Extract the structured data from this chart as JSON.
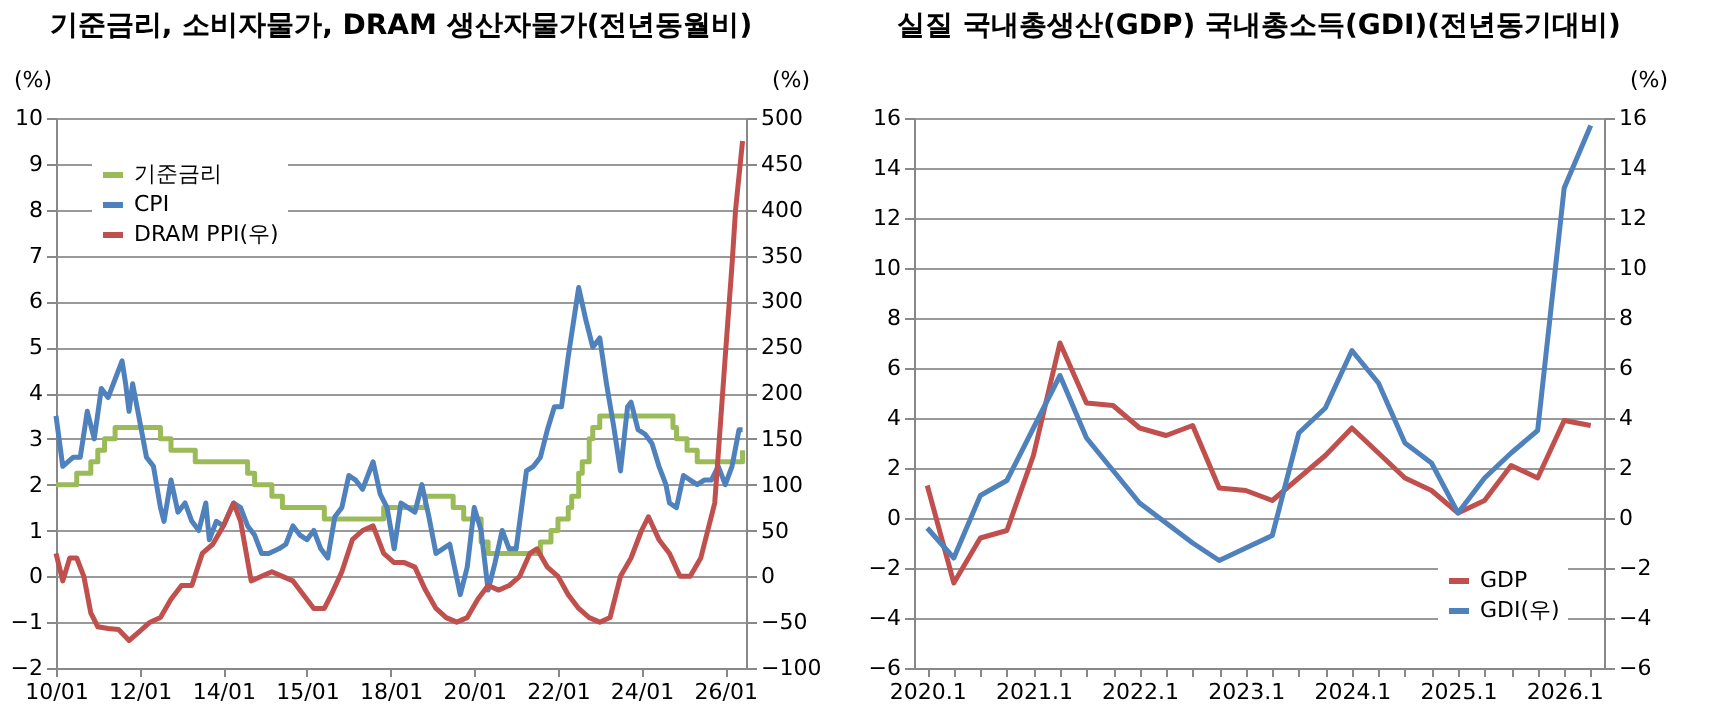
{
  "chart_data": [
    {
      "type": "line",
      "title": "기준금리, 소비자물가, DRAM 생산자물가(전년동월비)",
      "ylabel": "(%)",
      "y2label": "(%)",
      "xlim": [
        "2010-01",
        "2026-07"
      ],
      "xticks": [
        {
          "value": "2010-01",
          "label": "10/01"
        },
        {
          "value": "2012-01",
          "label": "12/01"
        },
        {
          "value": "2014-01",
          "label": "14/01"
        },
        {
          "value": "2016-01",
          "label": "15/01"
        },
        {
          "value": "2018-01",
          "label": "18/01"
        },
        {
          "value": "2020-01",
          "label": "20/01"
        },
        {
          "value": "2022-01",
          "label": "22/01"
        },
        {
          "value": "2024-01",
          "label": "24/01"
        },
        {
          "value": "2026-01",
          "label": "26/01"
        }
      ],
      "ylim": [
        -2,
        10
      ],
      "yticks": [
        -2,
        -1,
        0,
        1,
        2,
        3,
        4,
        5,
        6,
        7,
        8,
        9,
        10
      ],
      "y2lim": [
        -100,
        500
      ],
      "y2ticks": [
        -100,
        -50,
        0,
        50,
        100,
        150,
        200,
        250,
        300,
        350,
        400,
        450,
        500
      ],
      "grid": "y",
      "legend": "top left",
      "series": [
        {
          "name": "기준금리",
          "color": "#9bbb59",
          "type": "step",
          "x": [
            "2010-01",
            "2010-07",
            "2010-11",
            "2011-01",
            "2011-03",
            "2011-06",
            "2012-07",
            "2012-10",
            "2013-05",
            "2014-08",
            "2014-10",
            "2015-03",
            "2015-06",
            "2016-06",
            "2017-11",
            "2018-11",
            "2019-07",
            "2019-10",
            "2020-03",
            "2020-05",
            "2021-08",
            "2021-11",
            "2022-01",
            "2022-04",
            "2022-05",
            "2022-07",
            "2022-08",
            "2022-10",
            "2022-11",
            "2023-01",
            "2024-10",
            "2024-11",
            "2025-02",
            "2025-05",
            "2026-04",
            "2026-06"
          ],
          "values": [
            2.0,
            2.25,
            2.5,
            2.75,
            3.0,
            3.25,
            3.0,
            2.75,
            2.5,
            2.25,
            2.0,
            1.75,
            1.5,
            1.25,
            1.5,
            1.75,
            1.5,
            1.25,
            0.75,
            0.5,
            0.75,
            1.0,
            1.25,
            1.5,
            1.75,
            2.25,
            2.5,
            3.0,
            3.25,
            3.5,
            3.25,
            3.0,
            2.75,
            2.5,
            2.5,
            2.75
          ]
        },
        {
          "name": "CPI",
          "color": "#4f81bd",
          "x": [
            "2010-01",
            "2010-03",
            "2010-06",
            "2010-08",
            "2010-10",
            "2010-12",
            "2011-02",
            "2011-04",
            "2011-06",
            "2011-08",
            "2011-09",
            "2011-10",
            "2011-11",
            "2012-01",
            "2012-03",
            "2012-05",
            "2012-07",
            "2012-08",
            "2012-10",
            "2012-12",
            "2013-02",
            "2013-04",
            "2013-06",
            "2013-08",
            "2013-09",
            "2013-11",
            "2014-01",
            "2014-04",
            "2014-06",
            "2014-08",
            "2014-10",
            "2014-12",
            "2015-02",
            "2015-05",
            "2015-07",
            "2015-09",
            "2015-11",
            "2016-01",
            "2016-03",
            "2016-05",
            "2016-07",
            "2016-09",
            "2016-11",
            "2017-01",
            "2017-03",
            "2017-05",
            "2017-08",
            "2017-10",
            "2017-12",
            "2018-02",
            "2018-04",
            "2018-06",
            "2018-08",
            "2018-10",
            "2018-12",
            "2019-02",
            "2019-04",
            "2019-06",
            "2019-09",
            "2019-11",
            "2020-01",
            "2020-03",
            "2020-05",
            "2020-07",
            "2020-09",
            "2020-11",
            "2021-01",
            "2021-04",
            "2021-06",
            "2021-08",
            "2021-10",
            "2021-12",
            "2022-02",
            "2022-04",
            "2022-07",
            "2022-09",
            "2022-11",
            "2023-01",
            "2023-03",
            "2023-05",
            "2023-07",
            "2023-09",
            "2023-10",
            "2023-12",
            "2024-02",
            "2024-04",
            "2024-06",
            "2024-08",
            "2024-09",
            "2024-11",
            "2025-01",
            "2025-03",
            "2025-05",
            "2025-07",
            "2025-09",
            "2025-11",
            "2026-01",
            "2026-03",
            "2026-05",
            "2026-06"
          ],
          "values": [
            3.5,
            2.4,
            2.6,
            2.6,
            3.6,
            3.0,
            4.1,
            3.9,
            4.3,
            4.7,
            4.2,
            3.6,
            4.2,
            3.4,
            2.6,
            2.4,
            1.5,
            1.2,
            2.1,
            1.4,
            1.6,
            1.2,
            1.0,
            1.6,
            0.8,
            1.2,
            1.1,
            1.6,
            1.5,
            1.1,
            0.9,
            0.5,
            0.5,
            0.6,
            0.7,
            1.1,
            0.9,
            0.8,
            1.0,
            0.6,
            0.4,
            1.3,
            1.5,
            2.2,
            2.1,
            1.9,
            2.5,
            1.8,
            1.5,
            0.6,
            1.6,
            1.5,
            1.4,
            2.0,
            1.3,
            0.5,
            0.6,
            0.7,
            -0.4,
            0.2,
            1.5,
            1.0,
            -0.3,
            0.3,
            1.0,
            0.6,
            0.6,
            2.3,
            2.4,
            2.6,
            3.2,
            3.7,
            3.7,
            4.8,
            6.3,
            5.6,
            5.0,
            5.2,
            4.2,
            3.3,
            2.3,
            3.7,
            3.8,
            3.2,
            3.1,
            2.9,
            2.4,
            2.0,
            1.6,
            1.5,
            2.2,
            2.1,
            2.0,
            2.1,
            2.1,
            2.4,
            2.0,
            2.4,
            3.2,
            3.2
          ]
        },
        {
          "name": "DRAM PPI(우)",
          "color": "#c0504d",
          "axis": "y2",
          "x": [
            "2010-01",
            "2010-03",
            "2010-05",
            "2010-07",
            "2010-09",
            "2010-11",
            "2011-01",
            "2011-04",
            "2011-07",
            "2011-10",
            "2012-01",
            "2012-04",
            "2012-07",
            "2012-10",
            "2013-01",
            "2013-04",
            "2013-07",
            "2013-10",
            "2014-01",
            "2014-04",
            "2014-06",
            "2014-09",
            "2014-12",
            "2015-03",
            "2015-06",
            "2015-09",
            "2015-12",
            "2016-03",
            "2016-06",
            "2016-08",
            "2016-11",
            "2017-02",
            "2017-05",
            "2017-08",
            "2017-11",
            "2018-02",
            "2018-05",
            "2018-08",
            "2018-11",
            "2019-02",
            "2019-05",
            "2019-08",
            "2019-11",
            "2020-02",
            "2020-05",
            "2020-08",
            "2020-11",
            "2021-02",
            "2021-05",
            "2021-07",
            "2021-10",
            "2022-01",
            "2022-04",
            "2022-07",
            "2022-10",
            "2023-01",
            "2023-04",
            "2023-07",
            "2023-10",
            "2024-01",
            "2024-03",
            "2024-06",
            "2024-09",
            "2024-12",
            "2025-03",
            "2025-06",
            "2025-10",
            "2026-01",
            "2026-03",
            "2026-04",
            "2026-06"
          ],
          "values": [
            25,
            -5,
            20,
            20,
            0,
            -40,
            -55,
            -57,
            -58,
            -70,
            -60,
            -50,
            -45,
            -25,
            -10,
            -10,
            25,
            35,
            55,
            80,
            60,
            -5,
            0,
            5,
            0,
            -5,
            -20,
            -35,
            -35,
            -20,
            5,
            40,
            50,
            55,
            25,
            15,
            15,
            10,
            -15,
            -35,
            -45,
            -50,
            -45,
            -25,
            -10,
            -15,
            -10,
            0,
            25,
            30,
            10,
            0,
            -20,
            -35,
            -45,
            -50,
            -45,
            0,
            20,
            50,
            65,
            40,
            25,
            0,
            0,
            20,
            80,
            240,
            340,
            400,
            475
          ]
        }
      ]
    },
    {
      "type": "line",
      "title": "실질 국내총생산(GDP) 국내총소득(GDI)(전년동기대비)",
      "y2label": "(%)",
      "categories": [
        "2020.1",
        null,
        null,
        null,
        "2021.1",
        null,
        null,
        null,
        "2022.1",
        null,
        null,
        null,
        "2023.1",
        null,
        null,
        null,
        "2024.1",
        null,
        null,
        null,
        "2025.1",
        null,
        null,
        null,
        "2026.1",
        null
      ],
      "ylim": [
        -6,
        16
      ],
      "yticks": [
        -6,
        -4,
        -2,
        0,
        2,
        4,
        6,
        8,
        10,
        12,
        14,
        16
      ],
      "y2lim": [
        -6,
        16
      ],
      "y2ticks": [
        -6,
        -4,
        -2,
        0,
        2,
        4,
        6,
        8,
        10,
        12,
        14,
        16
      ],
      "grid": "y",
      "legend": "bottom right",
      "series": [
        {
          "name": "GDP",
          "color": "#c0504d",
          "values": [
            1.3,
            -2.6,
            -0.8,
            -0.5,
            2.5,
            7.0,
            4.6,
            4.5,
            3.6,
            3.3,
            3.7,
            1.2,
            1.1,
            0.7,
            1.6,
            2.5,
            3.6,
            2.6,
            1.6,
            1.1,
            0.2,
            0.7,
            2.1,
            1.6,
            3.9,
            3.7
          ]
        },
        {
          "name": "GDI(우)",
          "color": "#4f81bd",
          "axis": "y2",
          "values": [
            -0.4,
            -1.6,
            0.9,
            1.5,
            3.6,
            5.7,
            3.2,
            1.9,
            0.6,
            -0.2,
            -1.0,
            -1.7,
            -1.2,
            -0.7,
            3.4,
            4.4,
            6.7,
            5.4,
            3.0,
            2.2,
            0.2,
            1.6,
            2.6,
            3.5,
            13.2,
            15.7
          ]
        }
      ]
    }
  ]
}
